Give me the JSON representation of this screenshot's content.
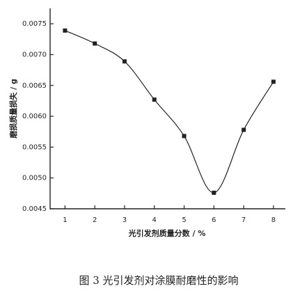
{
  "chart_data": {
    "type": "line",
    "x_label": "光引发剂质量分数 / %",
    "y_label": "磨损质量损失 / g",
    "caption": "图 3   光引发剂对涂膜耐磨性的影响",
    "x": [
      1,
      2,
      3,
      4,
      5,
      6,
      7,
      8
    ],
    "series": [
      {
        "color": "#222222",
        "values": [
          0.00739,
          0.00718,
          0.00689,
          0.00627,
          0.00568,
          0.00476,
          0.00578,
          0.00656
        ]
      }
    ],
    "xlim": [
      0.5,
      8.4
    ],
    "xticks": [
      1,
      2,
      3,
      4,
      5,
      6,
      7,
      8
    ],
    "ylim": [
      0.0045,
      0.00775
    ],
    "yticks": [
      0.0045,
      {
        "value": 0.005,
        "label": "0.0050"
      },
      0.0055,
      {
        "value": 0.006,
        "label": "0.0060"
      },
      0.0065,
      {
        "value": 0.007,
        "label": "0.0070"
      },
      0.0075
    ]
  }
}
